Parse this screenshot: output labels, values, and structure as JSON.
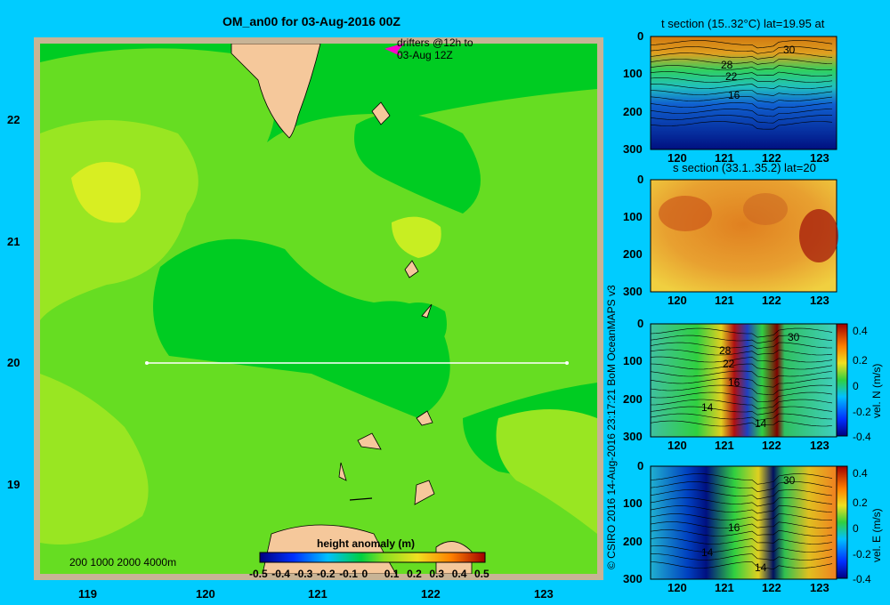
{
  "map": {
    "title": "OM_an00 for 03-Aug-2016 00Z",
    "drifter_note_line1": "drifters @12h to",
    "drifter_note_line2": "03-Aug 12Z",
    "depth_legend": "200  1000  2000  4000m",
    "colorbar_title": "height anomaly  (m)",
    "colorbar_ticks": [
      "-0.5",
      "-0.4",
      "-0.3",
      "-0.2",
      "-0.1",
      "0",
      "0.1",
      "0.2",
      "0.3",
      "0.4",
      "0.5"
    ],
    "x_ticks": [
      "119",
      "120",
      "121",
      "122",
      "123"
    ],
    "y_ticks": [
      "22",
      "21",
      "20",
      "19"
    ],
    "section_line": {
      "lon_start": 119.5,
      "lon_end": 123.3,
      "lat": 20.0
    }
  },
  "credit": "© CSIRO 2016   14-Aug-2016 23:17:21 BoM OceanMAPS v3",
  "sections": [
    {
      "title": "t section (15..32°C) lat=19.95 at",
      "y_ticks": [
        "0",
        "100",
        "200",
        "300"
      ],
      "x_ticks": [
        "120",
        "121",
        "122",
        "123"
      ],
      "contour_labels": [
        "30",
        "28",
        "22",
        "16"
      ],
      "colorbar": null
    },
    {
      "title": "s section (33.1..35.2) lat=20",
      "y_ticks": [
        "0",
        "100",
        "200",
        "300"
      ],
      "x_ticks": [
        "120",
        "121",
        "122",
        "123"
      ],
      "contour_labels": [],
      "colorbar": null
    },
    {
      "title": "",
      "y_ticks": [
        "0",
        "100",
        "200",
        "300"
      ],
      "x_ticks": [
        "120",
        "121",
        "122",
        "123"
      ],
      "contour_labels": [
        "30",
        "28",
        "22",
        "16",
        "14",
        "14"
      ],
      "colorbar": {
        "label": "vel. N  (m/s)",
        "ticks": [
          "0.4",
          "0.2",
          "0",
          "-0.2",
          "-0.4"
        ]
      }
    },
    {
      "title": "",
      "y_ticks": [
        "0",
        "100",
        "200",
        "300"
      ],
      "x_ticks": [
        "120",
        "121",
        "122",
        "123"
      ],
      "contour_labels": [
        "30",
        "16",
        "14",
        "14"
      ],
      "colorbar": {
        "label": "vel. E  (m/s)",
        "ticks": [
          "0.4",
          "0.2",
          "0",
          "-0.2",
          "-0.4"
        ]
      }
    }
  ],
  "chart_data": [
    {
      "type": "heatmap",
      "title": "OM_an00 for 03-Aug-2016 00Z",
      "xlabel": "",
      "ylabel": "",
      "xlim": [
        118.5,
        123.5
      ],
      "ylim": [
        18.3,
        22.7
      ],
      "colorbar_label": "height anomaly  (m)",
      "colorbar_range": [
        -0.5,
        0.5
      ]
    },
    {
      "type": "heatmap",
      "title": "t section (15..32°C) lat=19.95 at",
      "xlim": [
        119.5,
        123.2
      ],
      "ylim": [
        300,
        0
      ]
    },
    {
      "type": "heatmap",
      "title": "s section (33.1..35.2) lat=20",
      "xlim": [
        119.5,
        123.2
      ],
      "ylim": [
        300,
        0
      ]
    },
    {
      "type": "heatmap",
      "title": "",
      "xlim": [
        119.5,
        123.2
      ],
      "ylim": [
        300,
        0
      ],
      "colorbar_label": "vel. N  (m/s)",
      "colorbar_range": [
        -0.4,
        0.4
      ]
    },
    {
      "type": "heatmap",
      "title": "",
      "xlim": [
        119.5,
        123.2
      ],
      "ylim": [
        300,
        0
      ],
      "colorbar_label": "vel. E  (m/s)",
      "colorbar_range": [
        -0.4,
        0.4
      ]
    }
  ]
}
